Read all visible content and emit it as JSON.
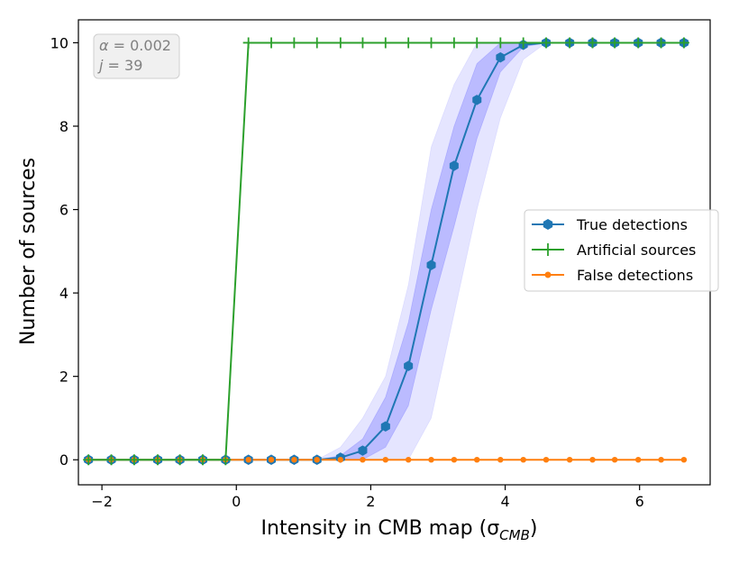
{
  "chart_data": {
    "type": "line",
    "xlabel": "Intensity in CMB map (σ",
    "xlabel_sub": "CMB",
    "xlabel_tail": ")",
    "ylabel": "Number of sources",
    "xlim": [
      -2.35,
      7.05
    ],
    "ylim": [
      -0.6,
      10.55
    ],
    "xticks": [
      -2,
      0,
      2,
      4,
      6
    ],
    "yticks": [
      0,
      2,
      4,
      6,
      8,
      10
    ],
    "xtick_labels": [
      "−2",
      "0",
      "2",
      "4",
      "6"
    ],
    "ytick_labels": [
      "0",
      "2",
      "4",
      "6",
      "8",
      "10"
    ],
    "grid": false,
    "legend_position": "center-right",
    "annotation": {
      "line1_sym": "α",
      "line1_val": " = 0.002",
      "line2_sym": "j",
      "line2_val": " = 39"
    },
    "x": [
      -2.2,
      -1.86,
      -1.52,
      -1.17,
      -0.84,
      -0.5,
      -0.16,
      0.18,
      0.52,
      0.86,
      1.2,
      1.55,
      1.88,
      2.22,
      2.56,
      2.9,
      3.24,
      3.58,
      3.93,
      4.27,
      4.61,
      4.96,
      5.3,
      5.63,
      5.98,
      6.32,
      6.66
    ],
    "series": [
      {
        "name": "True detections",
        "color": "#1f77b4",
        "marker": "hexagon",
        "values": [
          0,
          0,
          0,
          0,
          0,
          0,
          0,
          0,
          0,
          0,
          0,
          0.05,
          0.22,
          0.8,
          2.25,
          4.67,
          7.05,
          8.63,
          9.65,
          9.95,
          10,
          10,
          10,
          10,
          10,
          10,
          10
        ]
      },
      {
        "name": "Artificial sources",
        "color": "#2ca02c",
        "marker": "plus",
        "values": [
          0,
          0,
          0,
          0,
          0,
          0,
          0,
          10,
          10,
          10,
          10,
          10,
          10,
          10,
          10,
          10,
          10,
          10,
          10,
          10,
          10,
          10,
          10,
          10,
          10,
          10,
          10
        ]
      },
      {
        "name": "False detections",
        "color": "#ff7f0e",
        "marker": "dot",
        "values": [
          0,
          0,
          0,
          0,
          0,
          0,
          0,
          0,
          0,
          0,
          0,
          0,
          0,
          0,
          0,
          0,
          0,
          0,
          0,
          0,
          0,
          0,
          0,
          0,
          0,
          0,
          0
        ]
      }
    ],
    "bands": [
      {
        "kind": "outer",
        "color": "#0000ff",
        "opacity": 0.1,
        "x": [
          1.2,
          1.55,
          1.88,
          2.22,
          2.56,
          2.9,
          3.24,
          3.58,
          3.93,
          4.27,
          4.61
        ],
        "lower": [
          0,
          0,
          0,
          0,
          0,
          1.0,
          3.5,
          6.0,
          8.2,
          9.6,
          10
        ],
        "upper": [
          0,
          0.3,
          1.0,
          2.0,
          4.2,
          7.5,
          9.0,
          10.0,
          10.0,
          10.0,
          10
        ]
      },
      {
        "kind": "inner",
        "color": "#0000ff",
        "opacity": 0.18,
        "x": [
          1.2,
          1.55,
          1.88,
          2.22,
          2.56,
          2.9,
          3.24,
          3.58,
          3.93,
          4.27,
          4.61
        ],
        "lower": [
          0,
          0,
          0,
          0.3,
          1.3,
          3.6,
          5.6,
          7.7,
          9.3,
          9.9,
          10
        ],
        "upper": [
          0,
          0.1,
          0.5,
          1.5,
          3.3,
          6.0,
          8.0,
          9.5,
          10.0,
          10.0,
          10
        ]
      }
    ]
  }
}
